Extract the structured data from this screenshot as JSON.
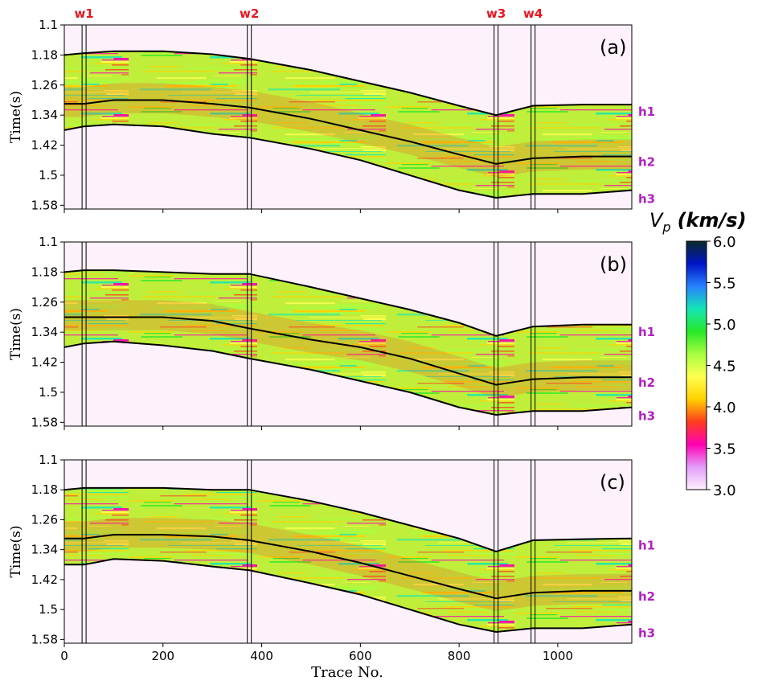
{
  "chart_data": {
    "type": "heatmap",
    "quantity": "Vp",
    "xlabel": "Trace No.",
    "ylabel": "Time(s)",
    "xlim": [
      0,
      1150
    ],
    "ylim": [
      1.59,
      1.1
    ],
    "xticks": [
      "0",
      "200",
      "400",
      "600",
      "800",
      "1000"
    ],
    "yticks": [
      "1.1",
      "1.18",
      "1.26",
      "1.34",
      "1.42",
      "1.5",
      "1.58"
    ],
    "colorbar": {
      "title_symbol": "V",
      "title_subscript": "p",
      "title_units": "(km/s)",
      "range": [
        3.0,
        6.0
      ],
      "ticks": [
        "6.0",
        "5.5",
        "5.0",
        "4.5",
        "4.0",
        "3.5",
        "3.0"
      ],
      "colors": [
        "#fdf1fc",
        "#e29dfa",
        "#ff00b4",
        "#ff3c1e",
        "#ffd200",
        "#ffff50",
        "#a8ff40",
        "#28e828",
        "#14e6b4",
        "#2882ff",
        "#0014c8",
        "#0b2a2a"
      ]
    },
    "wells": [
      {
        "name": "w1",
        "trace": 40
      },
      {
        "name": "w2",
        "trace": 375
      },
      {
        "name": "w3",
        "trace": 875
      },
      {
        "name": "w4",
        "trace": 950
      }
    ],
    "horizon_labels": [
      "h1",
      "h2",
      "h3"
    ],
    "panels": [
      {
        "label": "(a)",
        "top_boundary": {
          "x": [
            0,
            40,
            100,
            200,
            300,
            375,
            500,
            600,
            700,
            800,
            875,
            950,
            1050,
            1150
          ],
          "y": [
            1.18,
            1.175,
            1.17,
            1.17,
            1.178,
            1.19,
            1.22,
            1.25,
            1.28,
            1.315,
            1.34,
            1.315,
            1.312,
            1.312
          ]
        },
        "h1": {
          "x": [
            0,
            40,
            100,
            200,
            300,
            375,
            500,
            600,
            700,
            800,
            875,
            950,
            1050,
            1150
          ],
          "y": [
            1.31,
            1.31,
            1.3,
            1.3,
            1.31,
            1.32,
            1.35,
            1.38,
            1.41,
            1.445,
            1.47,
            1.455,
            1.45,
            1.45
          ]
        },
        "h3": {
          "x": [
            0,
            40,
            100,
            200,
            300,
            375,
            500,
            600,
            700,
            800,
            875,
            950,
            1050,
            1150
          ],
          "y": [
            1.38,
            1.37,
            1.365,
            1.37,
            1.39,
            1.4,
            1.43,
            1.46,
            1.5,
            1.54,
            1.56,
            1.55,
            1.55,
            1.54
          ]
        }
      },
      {
        "label": "(b)",
        "top_boundary": {
          "x": [
            0,
            40,
            100,
            200,
            300,
            375,
            500,
            600,
            700,
            800,
            875,
            950,
            1050,
            1150
          ],
          "y": [
            1.18,
            1.175,
            1.175,
            1.18,
            1.185,
            1.185,
            1.22,
            1.25,
            1.28,
            1.315,
            1.35,
            1.325,
            1.32,
            1.32
          ]
        },
        "h1": {
          "x": [
            0,
            40,
            100,
            200,
            300,
            375,
            500,
            600,
            700,
            800,
            875,
            950,
            1050,
            1150
          ],
          "y": [
            1.3,
            1.3,
            1.3,
            1.3,
            1.31,
            1.33,
            1.36,
            1.38,
            1.41,
            1.45,
            1.48,
            1.465,
            1.46,
            1.46
          ]
        },
        "h3": {
          "x": [
            0,
            40,
            100,
            200,
            300,
            375,
            500,
            600,
            700,
            800,
            875,
            950,
            1050,
            1150
          ],
          "y": [
            1.38,
            1.37,
            1.365,
            1.375,
            1.39,
            1.41,
            1.44,
            1.47,
            1.5,
            1.54,
            1.56,
            1.55,
            1.55,
            1.54
          ]
        }
      },
      {
        "label": "(c)",
        "top_boundary": {
          "x": [
            0,
            40,
            100,
            200,
            300,
            375,
            500,
            600,
            700,
            800,
            875,
            950,
            1050,
            1150
          ],
          "y": [
            1.18,
            1.175,
            1.175,
            1.175,
            1.18,
            1.18,
            1.21,
            1.24,
            1.275,
            1.31,
            1.345,
            1.315,
            1.312,
            1.31
          ]
        },
        "h1": {
          "x": [
            0,
            40,
            100,
            200,
            300,
            375,
            500,
            600,
            700,
            800,
            875,
            950,
            1050,
            1150
          ],
          "y": [
            1.31,
            1.31,
            1.3,
            1.3,
            1.305,
            1.315,
            1.345,
            1.375,
            1.41,
            1.445,
            1.47,
            1.455,
            1.45,
            1.45
          ]
        },
        "h3": {
          "x": [
            0,
            40,
            100,
            200,
            300,
            375,
            500,
            600,
            700,
            800,
            875,
            950,
            1050,
            1150
          ],
          "y": [
            1.38,
            1.38,
            1.365,
            1.37,
            1.385,
            1.395,
            1.43,
            1.46,
            1.5,
            1.54,
            1.56,
            1.55,
            1.55,
            1.54
          ]
        }
      }
    ]
  }
}
